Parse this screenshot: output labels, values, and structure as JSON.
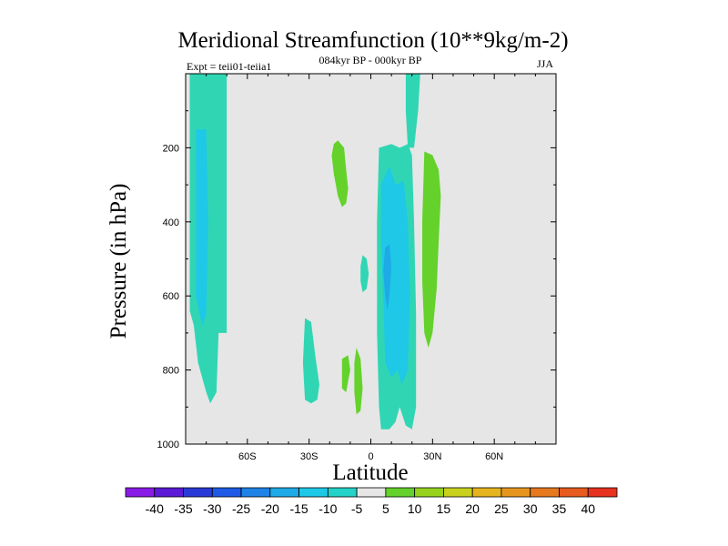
{
  "chart_data": {
    "type": "contour",
    "title": "Meridional Streamfunction (10**9kg/m-2)",
    "left_label": "Expt = teii01-teiia1",
    "center_label": "084kyr BP - 000kyr BP",
    "right_label": "JJA",
    "xlabel": "Latitude",
    "ylabel": "Pressure (in hPa)",
    "xlim": [
      -90,
      90
    ],
    "ylim": [
      1000,
      0
    ],
    "x_ticks": [
      {
        "value": -60,
        "label": "60S"
      },
      {
        "value": -30,
        "label": "30S"
      },
      {
        "value": 0,
        "label": "0"
      },
      {
        "value": 30,
        "label": "30N"
      },
      {
        "value": 60,
        "label": "60N"
      }
    ],
    "y_ticks": [
      {
        "value": 200,
        "label": "200"
      },
      {
        "value": 400,
        "label": "400"
      },
      {
        "value": 600,
        "label": "600"
      },
      {
        "value": 800,
        "label": "800"
      },
      {
        "value": 1000,
        "label": "1000"
      }
    ],
    "background_color": "#e6e6e6",
    "colorbar": {
      "labels": [
        "-40",
        "-35",
        "-30",
        "-25",
        "-20",
        "-15",
        "-10",
        "-5",
        "5",
        "10",
        "15",
        "20",
        "25",
        "30",
        "35",
        "40"
      ],
      "colors": [
        "#8a1ae6",
        "#5a1ad6",
        "#2a3ad6",
        "#1e5ae6",
        "#1e82e6",
        "#1eaae6",
        "#1ec8e6",
        "#24d2c8",
        "#e6e6e6",
        "#64d22a",
        "#96d21e",
        "#c8d21e",
        "#e6b41e",
        "#e6961e",
        "#e6781e",
        "#e65a1e",
        "#e6321e"
      ]
    },
    "regions": [
      {
        "name": "sh-highlat-cell",
        "color": "#30d6b4",
        "points": [
          [
            -88,
            0
          ],
          [
            -70,
            0
          ],
          [
            -70,
            700
          ],
          [
            -74,
            700
          ],
          [
            -75,
            860
          ],
          [
            -78,
            890
          ],
          [
            -80,
            860
          ],
          [
            -84,
            780
          ],
          [
            -86,
            680
          ],
          [
            -88,
            640
          ]
        ]
      },
      {
        "name": "sh-highlat-core",
        "color": "#1ec8e6",
        "points": [
          [
            -85,
            150
          ],
          [
            -80,
            150
          ],
          [
            -79,
            400
          ],
          [
            -80,
            650
          ],
          [
            -82,
            680
          ],
          [
            -85,
            600
          ]
        ]
      },
      {
        "name": "sh-midlat-cell",
        "color": "#30d6b4",
        "points": [
          [
            -32,
            660
          ],
          [
            -29,
            670
          ],
          [
            -27,
            760
          ],
          [
            -25,
            840
          ],
          [
            -26,
            880
          ],
          [
            -29,
            890
          ],
          [
            -32,
            880
          ],
          [
            -33,
            780
          ]
        ]
      },
      {
        "name": "sh-upper-pos",
        "color": "#64d22a",
        "points": [
          [
            -18,
            190
          ],
          [
            -16,
            180
          ],
          [
            -13,
            200
          ],
          [
            -12,
            260
          ],
          [
            -11,
            310
          ],
          [
            -12,
            350
          ],
          [
            -14,
            360
          ],
          [
            -16,
            330
          ],
          [
            -18,
            270
          ],
          [
            -19,
            220
          ]
        ]
      },
      {
        "name": "eq-pos-small",
        "color": "#30d6b4",
        "points": [
          [
            -4,
            490
          ],
          [
            -2,
            500
          ],
          [
            -1,
            540
          ],
          [
            -2,
            580
          ],
          [
            -4,
            590
          ],
          [
            -5,
            560
          ],
          [
            -5,
            520
          ]
        ]
      },
      {
        "name": "sh-lower-pos-a",
        "color": "#64d22a",
        "points": [
          [
            -14,
            770
          ],
          [
            -11,
            760
          ],
          [
            -10,
            800
          ],
          [
            -11,
            830
          ],
          [
            -12,
            860
          ],
          [
            -14,
            850
          ],
          [
            -14,
            800
          ]
        ]
      },
      {
        "name": "sh-lower-pos-b",
        "color": "#64d22a",
        "points": [
          [
            -7,
            740
          ],
          [
            -5,
            770
          ],
          [
            -4,
            850
          ],
          [
            -5,
            910
          ],
          [
            -7,
            920
          ],
          [
            -8,
            860
          ],
          [
            -8,
            780
          ]
        ]
      },
      {
        "name": "eq-main-cell",
        "color": "#30d6b4",
        "points": [
          [
            4,
            200
          ],
          [
            10,
            190
          ],
          [
            14,
            200
          ],
          [
            18,
            190
          ],
          [
            20,
            220
          ],
          [
            21,
            400
          ],
          [
            22,
            650
          ],
          [
            22,
            900
          ],
          [
            20,
            960
          ],
          [
            17,
            950
          ],
          [
            14,
            900
          ],
          [
            12,
            940
          ],
          [
            9,
            960
          ],
          [
            5,
            960
          ],
          [
            4,
            900
          ],
          [
            3,
            700
          ],
          [
            3,
            400
          ]
        ]
      },
      {
        "name": "eq-main-core",
        "color": "#1ec8e6",
        "points": [
          [
            5,
            300
          ],
          [
            9,
            250
          ],
          [
            12,
            300
          ],
          [
            16,
            290
          ],
          [
            18,
            400
          ],
          [
            19,
            600
          ],
          [
            18,
            800
          ],
          [
            15,
            840
          ],
          [
            13,
            800
          ],
          [
            10,
            820
          ],
          [
            7,
            780
          ],
          [
            6,
            600
          ],
          [
            5,
            450
          ]
        ]
      },
      {
        "name": "eq-main-inner",
        "color": "#1eaae6",
        "points": [
          [
            7,
            470
          ],
          [
            9,
            460
          ],
          [
            10,
            520
          ],
          [
            9,
            600
          ],
          [
            8,
            640
          ],
          [
            7,
            600
          ],
          [
            6,
            530
          ]
        ]
      },
      {
        "name": "nh-upper-jet",
        "color": "#30d6b4",
        "points": [
          [
            17,
            0
          ],
          [
            24,
            0
          ],
          [
            23,
            100
          ],
          [
            21,
            200
          ],
          [
            18,
            200
          ],
          [
            17,
            100
          ]
        ]
      },
      {
        "name": "nh-pos-cell",
        "color": "#64d22a",
        "points": [
          [
            26,
            210
          ],
          [
            30,
            220
          ],
          [
            33,
            260
          ],
          [
            34,
            330
          ],
          [
            33,
            450
          ],
          [
            32,
            580
          ],
          [
            30,
            700
          ],
          [
            28,
            740
          ],
          [
            26,
            700
          ],
          [
            25,
            560
          ],
          [
            25,
            400
          ]
        ]
      }
    ]
  }
}
